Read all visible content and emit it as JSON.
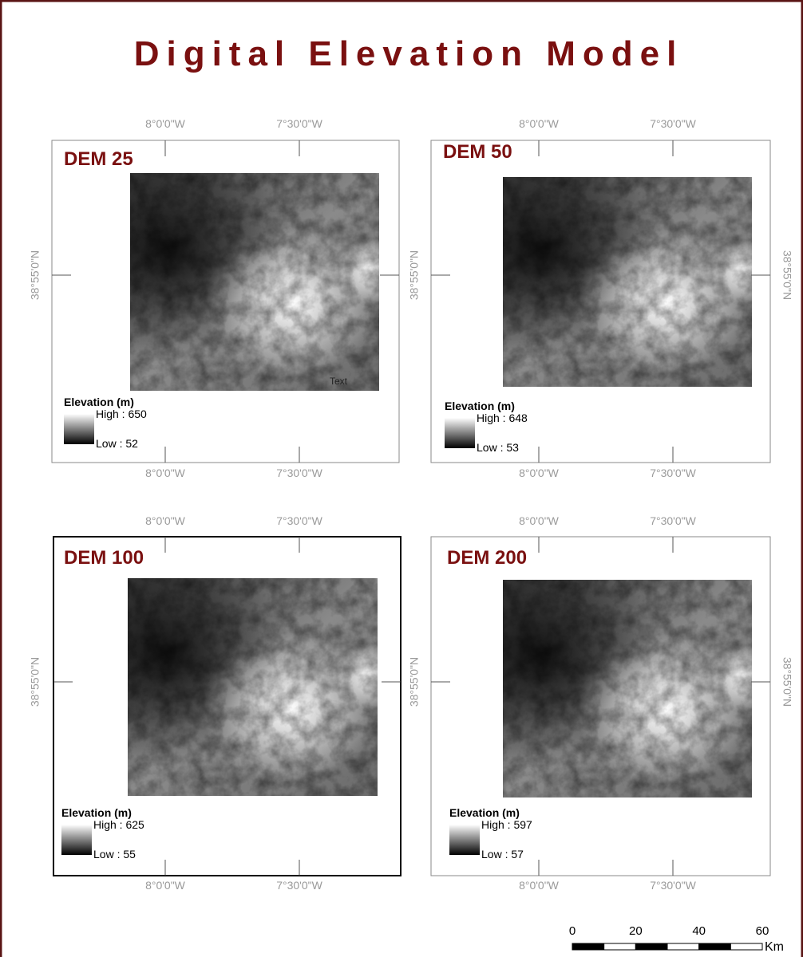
{
  "title": "Digital Elevation Model",
  "panels": [
    {
      "label": "DEM 25",
      "note": "Text",
      "legend": {
        "title": "Elevation (m)",
        "high": "High : 650",
        "low": "Low : 52"
      },
      "top_labels": [
        "8°0'0\"W",
        "7°30'0\"W"
      ],
      "bottom_labels": [
        "8°0'0\"W",
        "7°30'0\"W"
      ],
      "side_labels": [
        "38°55'0\"N"
      ]
    },
    {
      "label": "DEM 50",
      "legend": {
        "title": "Elevation (m)",
        "high": "High : 648",
        "low": "Low : 53"
      },
      "top_labels": [
        "8°0'0\"W",
        "7°30'0\"W"
      ],
      "bottom_labels": [
        "8°0'0\"W",
        "7°30'0\"W"
      ],
      "side_labels": [
        "38°55'0\"N",
        "38°55'0\"N"
      ]
    },
    {
      "label": "DEM 100",
      "legend": {
        "title": "Elevation (m)",
        "high": "High : 625",
        "low": "Low : 55"
      },
      "top_labels": [
        "8°0'0\"W",
        "7°30'0\"W"
      ],
      "bottom_labels": [
        "8°0'0\"W",
        "7°30'0\"W"
      ],
      "side_labels": [
        "38°55'0\"N"
      ]
    },
    {
      "label": "DEM 200",
      "legend": {
        "title": "Elevation (m)",
        "high": "High : 597",
        "low": "Low : 57"
      },
      "top_labels": [
        "8°0'0\"W",
        "7°30'0\"W"
      ],
      "bottom_labels": [
        "8°0'0\"W",
        "7°30'0\"W"
      ],
      "side_labels": [
        "38°55'0\"N",
        "38°55'0\"N"
      ]
    }
  ],
  "scale_bar": {
    "labels": [
      "0",
      "20",
      "40",
      "60"
    ],
    "unit": "Km"
  }
}
